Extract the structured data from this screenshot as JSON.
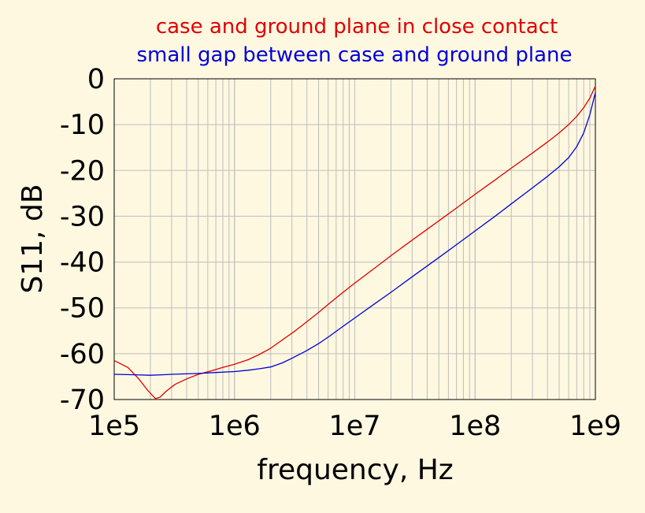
{
  "colors": {
    "background": "#fef8e1",
    "plot_background": "#fef8e1",
    "grid": "#bdbdbd",
    "red_series": "#e00000",
    "blue_series": "#0000d8"
  },
  "chart_data": {
    "type": "line",
    "title": "",
    "xlabel": "frequency, Hz",
    "ylabel": "S11, dB",
    "xscale": "log",
    "xlim": [
      100000,
      1000000000
    ],
    "ylim": [
      -70,
      0
    ],
    "xticks": [
      {
        "value": 100000,
        "label": "1e5"
      },
      {
        "value": 1000000,
        "label": "1e6"
      },
      {
        "value": 10000000,
        "label": "1e7"
      },
      {
        "value": 100000000,
        "label": "1e8"
      },
      {
        "value": 1000000000,
        "label": "1e9"
      }
    ],
    "yticks": [
      {
        "value": 0,
        "label": "0"
      },
      {
        "value": -10,
        "label": "-10"
      },
      {
        "value": -20,
        "label": "-20"
      },
      {
        "value": -30,
        "label": "-30"
      },
      {
        "value": -40,
        "label": "-40"
      },
      {
        "value": -50,
        "label": "-50"
      },
      {
        "value": -60,
        "label": "-60"
      },
      {
        "value": -70,
        "label": "-70"
      }
    ],
    "grid": true,
    "legend_position": "top",
    "series": [
      {
        "name": "case and ground plane in close contact",
        "color": "#e00000",
        "x": [
          100000,
          130000,
          160000,
          190000,
          220000,
          240000,
          270000,
          320000,
          400000,
          500000,
          650000,
          800000,
          1000000,
          1300000,
          1600000,
          2000000,
          2500000,
          3200000,
          4000000,
          5000000,
          6300000,
          8000000,
          10000000,
          15000000,
          20000000,
          30000000,
          50000000,
          70000000,
          100000000,
          150000000,
          200000000,
          300000000,
          400000000,
          500000000,
          600000000,
          700000000,
          800000000,
          900000000,
          1000000000
        ],
        "y": [
          -61.5,
          -63.0,
          -65.5,
          -68.0,
          -69.8,
          -69.5,
          -68.2,
          -66.7,
          -65.5,
          -64.5,
          -63.7,
          -63.0,
          -62.3,
          -61.3,
          -60.2,
          -58.8,
          -57.0,
          -55.0,
          -53.0,
          -51.0,
          -48.8,
          -46.6,
          -44.6,
          -41.1,
          -38.6,
          -35.2,
          -31.0,
          -28.2,
          -25.2,
          -21.9,
          -19.5,
          -16.2,
          -13.8,
          -11.8,
          -10.0,
          -8.2,
          -6.3,
          -4.2,
          -1.6
        ]
      },
      {
        "name": "small gap between case and ground plane",
        "color": "#0000d8",
        "x": [
          100000,
          150000,
          200000,
          250000,
          300000,
          400000,
          500000,
          700000,
          1000000,
          1300000,
          1600000,
          2000000,
          2500000,
          3000000,
          4000000,
          5000000,
          6300000,
          8000000,
          10000000,
          15000000,
          20000000,
          30000000,
          50000000,
          70000000,
          100000000,
          150000000,
          200000000,
          300000000,
          400000000,
          500000000,
          600000000,
          700000000,
          800000000,
          900000000,
          1000000000
        ],
        "y": [
          -64.5,
          -64.6,
          -64.7,
          -64.6,
          -64.5,
          -64.4,
          -64.3,
          -64.1,
          -63.9,
          -63.6,
          -63.3,
          -62.9,
          -62.0,
          -61.0,
          -59.3,
          -57.8,
          -56.0,
          -54.0,
          -52.2,
          -48.9,
          -46.6,
          -43.2,
          -39.0,
          -36.2,
          -33.2,
          -29.8,
          -27.3,
          -23.8,
          -21.3,
          -19.2,
          -17.2,
          -14.8,
          -11.8,
          -7.8,
          -3.0
        ]
      }
    ]
  }
}
